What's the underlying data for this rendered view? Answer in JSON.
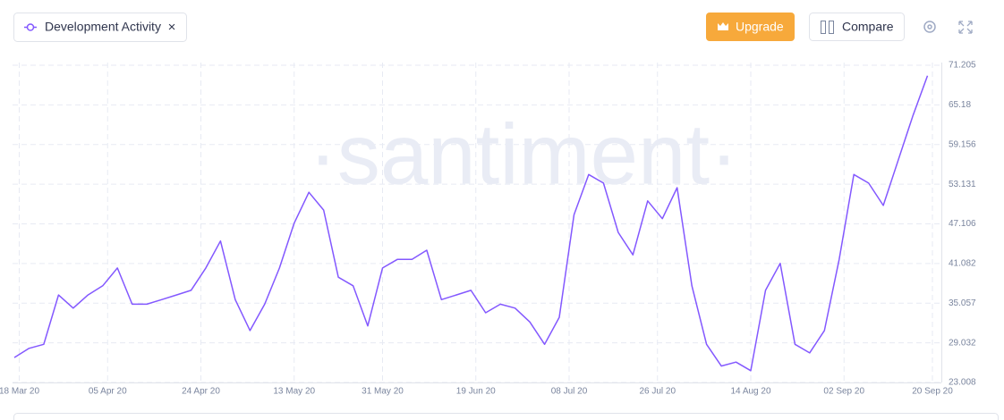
{
  "toolbar": {
    "metric_close": "×",
    "upgrade": "Upgrade",
    "compare": "Compare"
  },
  "chart_data": {
    "type": "line",
    "watermark": "·santiment·",
    "x": [
      "2020-03-17",
      "2020-03-20",
      "2020-03-23",
      "2020-03-26",
      "2020-03-29",
      "2020-04-01",
      "2020-04-04",
      "2020-04-07",
      "2020-04-10",
      "2020-04-13",
      "2020-04-16",
      "2020-04-19",
      "2020-04-22",
      "2020-04-25",
      "2020-04-28",
      "2020-05-01",
      "2020-05-04",
      "2020-05-07",
      "2020-05-10",
      "2020-05-13",
      "2020-05-16",
      "2020-05-19",
      "2020-05-22",
      "2020-05-25",
      "2020-05-28",
      "2020-05-31",
      "2020-06-03",
      "2020-06-06",
      "2020-06-09",
      "2020-06-12",
      "2020-06-15",
      "2020-06-18",
      "2020-06-21",
      "2020-06-24",
      "2020-06-27",
      "2020-06-30",
      "2020-07-03",
      "2020-07-06",
      "2020-07-09",
      "2020-07-12",
      "2020-07-15",
      "2020-07-18",
      "2020-07-21",
      "2020-07-24",
      "2020-07-27",
      "2020-07-30",
      "2020-08-02",
      "2020-08-05",
      "2020-08-08",
      "2020-08-11",
      "2020-08-14",
      "2020-08-17",
      "2020-08-20",
      "2020-08-23",
      "2020-08-26",
      "2020-08-29",
      "2020-09-01",
      "2020-09-04",
      "2020-09-07",
      "2020-09-10",
      "2020-09-13",
      "2020-09-16",
      "2020-09-19"
    ],
    "series": [
      {
        "name": "Development Activity",
        "color": "#8358ff",
        "values": [
          26.8,
          28.2,
          28.8,
          36.3,
          34.3,
          36.3,
          37.7,
          40.4,
          34.9,
          34.9,
          35.6,
          36.3,
          37.0,
          40.4,
          44.5,
          35.6,
          30.9,
          34.9,
          40.4,
          47.2,
          51.9,
          49.2,
          39.0,
          37.7,
          31.6,
          40.4,
          41.7,
          41.7,
          43.1,
          35.6,
          36.3,
          37.0,
          33.6,
          34.9,
          34.3,
          32.2,
          28.8,
          32.9,
          48.5,
          54.6,
          53.3,
          45.8,
          42.4,
          50.6,
          47.9,
          52.6,
          37.7,
          28.8,
          25.5,
          26.1,
          24.8,
          37.0,
          41.1,
          28.8,
          27.5,
          30.9,
          41.7,
          54.6,
          53.3,
          49.9,
          56.7,
          63.5,
          69.6
        ]
      }
    ],
    "xlim": [
      "2020-03-17",
      "2020-09-20"
    ],
    "xticks": [
      {
        "value": "2020-03-18",
        "label": "18 Mar 20"
      },
      {
        "value": "2020-04-05",
        "label": "05 Apr 20"
      },
      {
        "value": "2020-04-24",
        "label": "24 Apr 20"
      },
      {
        "value": "2020-05-13",
        "label": "13 May 20"
      },
      {
        "value": "2020-05-31",
        "label": "31 May 20"
      },
      {
        "value": "2020-06-19",
        "label": "19 Jun 20"
      },
      {
        "value": "2020-07-08",
        "label": "08 Jul 20"
      },
      {
        "value": "2020-07-26",
        "label": "26 Jul 20"
      },
      {
        "value": "2020-08-14",
        "label": "14 Aug 20"
      },
      {
        "value": "2020-09-02",
        "label": "02 Sep 20"
      },
      {
        "value": "2020-09-20",
        "label": "20 Sep 20"
      }
    ],
    "ylim": [
      23.008,
      71.205
    ],
    "yticks": [
      23.008,
      29.032,
      35.057,
      41.082,
      47.106,
      53.131,
      59.156,
      65.18,
      71.205
    ],
    "grid": true
  }
}
